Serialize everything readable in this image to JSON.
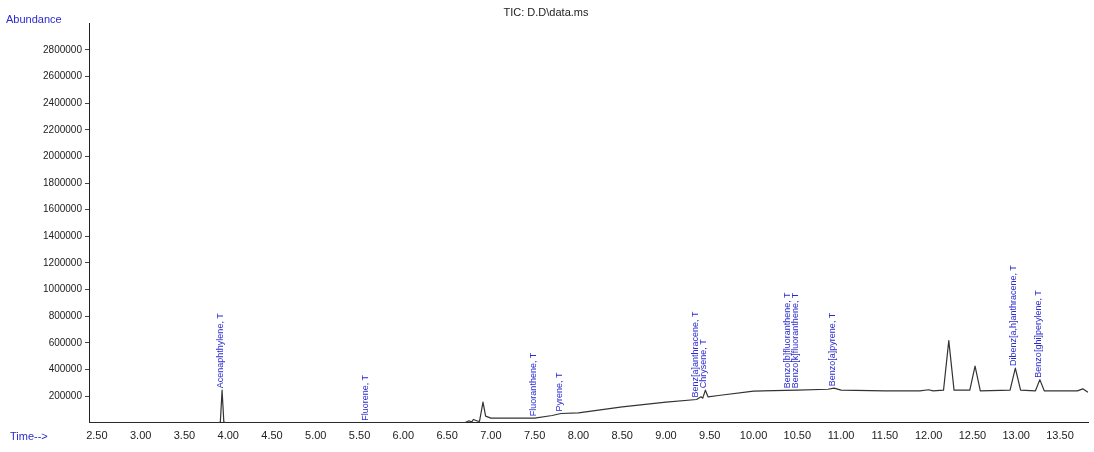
{
  "chart_data": {
    "type": "line",
    "title": "TIC: D.D\\data.ms",
    "xlabel": "Time-->",
    "ylabel": "Abundance",
    "xlim": [
      2.41,
      13.82
    ],
    "ylim": [
      0,
      3000000
    ],
    "xticks": [
      {
        "value": 2.5,
        "label": "2.50"
      },
      {
        "value": 3,
        "label": "3.00"
      },
      {
        "value": 3.5,
        "label": "3.50"
      },
      {
        "value": 4,
        "label": "4.00"
      },
      {
        "value": 4.5,
        "label": "4.50"
      },
      {
        "value": 5,
        "label": "5.00"
      },
      {
        "value": 5.5,
        "label": "5.50"
      },
      {
        "value": 6,
        "label": "6.00"
      },
      {
        "value": 6.5,
        "label": "6.50"
      },
      {
        "value": 7,
        "label": "7.00"
      },
      {
        "value": 7.5,
        "label": "7.50"
      },
      {
        "value": 8,
        "label": "8.00"
      },
      {
        "value": 8.5,
        "label": "8.50"
      },
      {
        "value": 9,
        "label": "9.00"
      },
      {
        "value": 9.5,
        "label": "9.50"
      },
      {
        "value": 10,
        "label": "10.00"
      },
      {
        "value": 10.5,
        "label": "10.50"
      },
      {
        "value": 11,
        "label": "11.00"
      },
      {
        "value": 11.5,
        "label": "11.50"
      },
      {
        "value": 12,
        "label": "12.00"
      },
      {
        "value": 12.5,
        "label": "12.50"
      },
      {
        "value": 13,
        "label": "13.00"
      },
      {
        "value": 13.5,
        "label": "13.50"
      }
    ],
    "yticks": [
      200000,
      400000,
      600000,
      800000,
      1000000,
      1200000,
      1400000,
      1600000,
      1800000,
      2000000,
      2200000,
      2400000,
      2600000,
      2800000
    ],
    "series": [
      {
        "color": "#333333",
        "x": [
          2.41,
          3.88,
          3.91,
          3.93,
          3.95,
          3.98,
          6.7,
          6.75,
          6.78,
          6.8,
          6.84,
          6.87,
          6.91,
          6.94,
          7.0,
          7.5,
          7.7,
          7.8,
          8.0,
          8.5,
          9.0,
          9.35,
          9.4,
          9.42,
          9.45,
          9.48,
          9.6,
          10.0,
          10.5,
          10.85,
          10.92,
          11.0,
          11.5,
          11.9,
          12.0,
          12.05,
          12.17,
          12.23,
          12.29,
          12.47,
          12.53,
          12.59,
          12.93,
          12.99,
          13.05,
          13.22,
          13.27,
          13.32,
          13.7,
          13.76,
          13.82
        ],
        "values": [
          0,
          0,
          5000,
          245000,
          5000,
          0,
          0,
          15000,
          5000,
          25000,
          15000,
          10000,
          156000,
          50000,
          35000,
          35000,
          55000,
          70000,
          75000,
          120000,
          155000,
          175000,
          195000,
          185000,
          245000,
          195000,
          205000,
          238000,
          245000,
          252000,
          260000,
          245000,
          240000,
          240000,
          248000,
          240000,
          245000,
          617000,
          245000,
          245000,
          425000,
          240000,
          245000,
          411000,
          245000,
          240000,
          324000,
          240000,
          240000,
          255000,
          230000
        ]
      }
    ],
    "annotations": [
      {
        "text": "Acenaphthylene, T",
        "x": 3.93,
        "y": 245000
      },
      {
        "text": "Fluorene, T",
        "x": 5.58,
        "y": 0
      },
      {
        "text": "Fluoranthene, T",
        "x": 7.5,
        "y": 35000
      },
      {
        "text": "Pyrene, T",
        "x": 7.8,
        "y": 70000
      },
      {
        "text": "Benz[a]anthracene, T",
        "x": 9.35,
        "y": 175000
      },
      {
        "text": "Chrysene, T",
        "x": 9.45,
        "y": 245000
      },
      {
        "text": "Benzo[b]fluoranthene, T",
        "x": 10.4,
        "y": 243600
      },
      {
        "text": "Benzo[k]fluoranthene, T",
        "x": 10.5,
        "y": 245000
      },
      {
        "text": "Benzo[a]pyrene, T",
        "x": 10.92,
        "y": 260000
      },
      {
        "text": "Dibenz[a,h]anthracene, T",
        "x": 12.99,
        "y": 411000
      },
      {
        "text": "Benzo[ghi]perylene, T",
        "x": 13.27,
        "y": 324000
      }
    ]
  }
}
